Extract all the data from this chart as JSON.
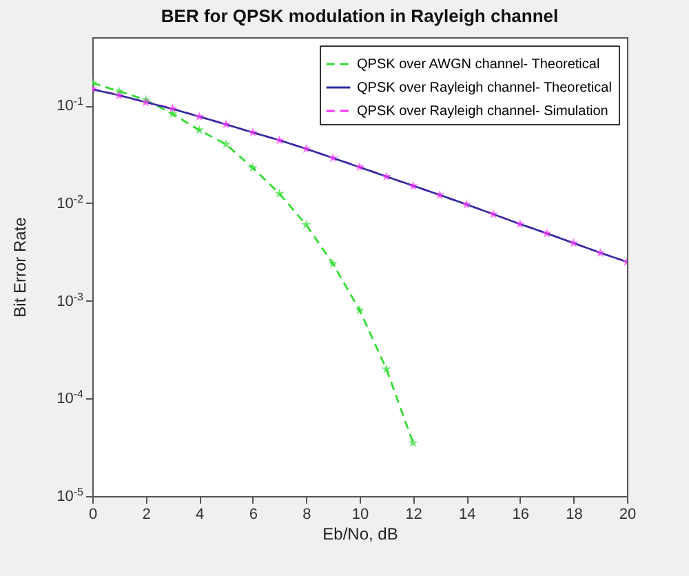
{
  "chart_data": {
    "type": "line",
    "title": "BER for QPSK modulation in Rayleigh channel",
    "xlabel": "Eb/No, dB",
    "ylabel": "Bit Error Rate",
    "x": [
      0,
      1,
      2,
      3,
      4,
      5,
      6,
      7,
      8,
      9,
      10,
      11,
      12,
      13,
      14,
      15,
      16,
      17,
      18,
      19,
      20
    ],
    "series": [
      {
        "name": "QPSK over AWGN channel- Theoretical",
        "color": "#33dd33",
        "marker": "star",
        "line_style": "dashed",
        "x": [
          0,
          1,
          2,
          3,
          4,
          5,
          6,
          7,
          8,
          9,
          10,
          11,
          12
        ],
        "values": [
          0.17,
          0.14,
          0.114,
          0.082,
          0.056,
          0.04,
          0.023,
          0.0125,
          0.006,
          0.0024,
          0.0008,
          0.0002,
          3.5e-05
        ]
      },
      {
        "name": "QPSK over Rayleigh channel- Theoretical",
        "color": "#2e2ea0",
        "marker": "none",
        "line_style": "solid",
        "values": [
          0.146,
          0.127,
          0.108,
          0.092,
          0.077,
          0.064,
          0.053,
          0.044,
          0.036,
          0.029,
          0.0233,
          0.0187,
          0.0151,
          0.0121,
          0.0097,
          0.0077,
          0.0061,
          0.0049,
          0.0039,
          0.0031,
          0.0025
        ]
      },
      {
        "name": "QPSK over Rayleigh channel- Simulation",
        "color": "#ff33ff",
        "marker": "star",
        "line_style": "dashed",
        "values": [
          0.148,
          0.127,
          0.108,
          0.093,
          0.077,
          0.064,
          0.053,
          0.044,
          0.036,
          0.029,
          0.0235,
          0.0187,
          0.015,
          0.0121,
          0.0097,
          0.0077,
          0.0061,
          0.0049,
          0.0039,
          0.0031,
          0.0025
        ]
      }
    ],
    "log": "y",
    "xlim": [
      0,
      20
    ],
    "xticks": [
      0,
      2,
      4,
      6,
      8,
      10,
      12,
      14,
      16,
      18,
      20
    ],
    "ylim": [
      1e-05,
      0.5
    ],
    "yticks": [
      {
        "value": 1e-05,
        "label": "10$^{-5}$"
      },
      {
        "value": 0.0001,
        "label": "10$^{-4}$"
      },
      {
        "value": 0.001,
        "label": "10$^{-3}$"
      },
      {
        "value": 0.01,
        "label": "10$^{-2}$"
      },
      {
        "value": 0.1,
        "label": "10$^{-1}$"
      }
    ],
    "grid": false,
    "legend": "top right"
  }
}
